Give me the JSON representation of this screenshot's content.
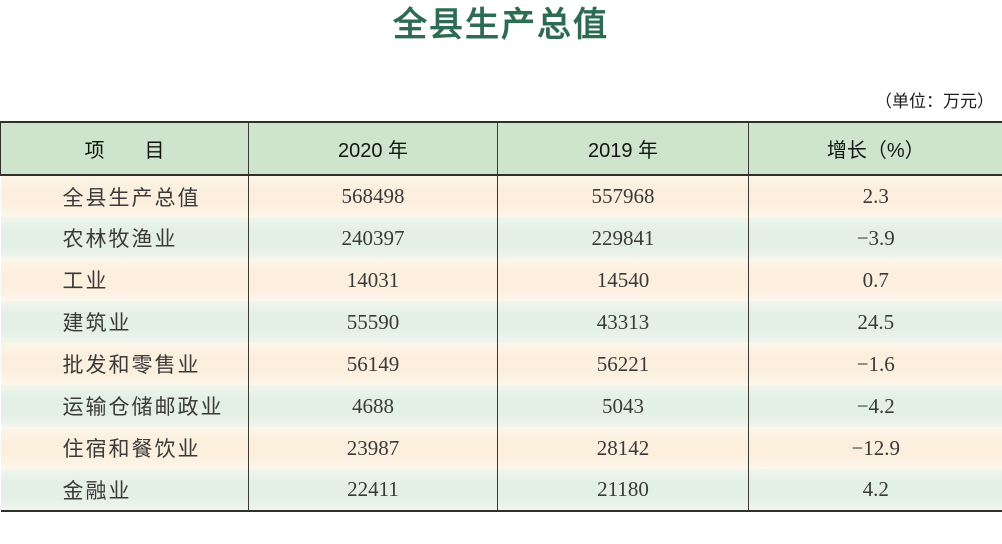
{
  "page": {
    "title": "全县生产总值",
    "unit_note": "（单位：万元）"
  },
  "table": {
    "headers": [
      "项　　目",
      "2020 年",
      "2019 年",
      "增长（%）"
    ],
    "rows": [
      {
        "label": "全县生产总值",
        "y2020": "568498",
        "y2019": "557968",
        "growth": "2.3"
      },
      {
        "label": "农林牧渔业",
        "y2020": "240397",
        "y2019": "229841",
        "growth": "−3.9"
      },
      {
        "label": "工业",
        "y2020": "14031",
        "y2019": "14540",
        "growth": "0.7"
      },
      {
        "label": "建筑业",
        "y2020": "55590",
        "y2019": "43313",
        "growth": "24.5"
      },
      {
        "label": "批发和零售业",
        "y2020": "56149",
        "y2019": "56221",
        "growth": "−1.6"
      },
      {
        "label": "运输仓储邮政业",
        "y2020": "4688",
        "y2019": "5043",
        "growth": "−4.2"
      },
      {
        "label": "住宿和餐饮业",
        "y2020": "23987",
        "y2019": "28142",
        "growth": "−12.9"
      },
      {
        "label": "金融业",
        "y2020": "22411",
        "y2019": "21180",
        "growth": "4.2"
      }
    ]
  },
  "colors": {
    "title_green": "#2e6b53",
    "header_bg": "#cee4cd",
    "row_peach": "#fcefde",
    "row_mint": "#e4f0e5",
    "border_dark": "#31312a"
  }
}
